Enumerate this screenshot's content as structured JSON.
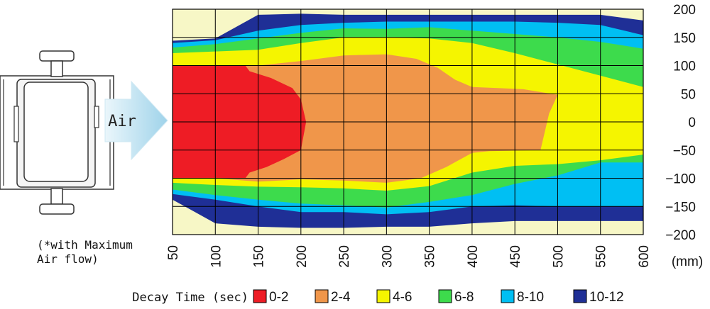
{
  "device": {
    "air_label": "Air",
    "note_line1": "(*with Maximum",
    "note_line2": "Air flow)"
  },
  "chart_data": {
    "type": "heatmap",
    "title": "",
    "xlabel": "",
    "ylabel": "",
    "x_unit": "(mm)",
    "xlim": [
      50,
      600
    ],
    "ylim": [
      -200,
      200
    ],
    "x_ticks": [
      50,
      100,
      150,
      200,
      250,
      300,
      350,
      400,
      450,
      500,
      550,
      600
    ],
    "y_ticks": [
      200,
      150,
      100,
      50,
      0,
      -50,
      -100,
      -150,
      -200
    ],
    "y_tick_labels": [
      "200",
      "150",
      "100",
      "50",
      "0",
      "−50",
      "−100",
      "−150",
      "−200"
    ],
    "grid": true,
    "background_color": "#f7f7c6",
    "legend_title": "Decay Time (sec)",
    "legend_position": "bottom",
    "bands": [
      {
        "label": "10-12",
        "color": "#1f2f96",
        "points": [
          [
            50,
            144
          ],
          [
            100,
            148
          ],
          [
            150,
            190
          ],
          [
            200,
            192
          ],
          [
            250,
            190
          ],
          [
            300,
            190
          ],
          [
            350,
            190
          ],
          [
            400,
            190
          ],
          [
            450,
            190
          ],
          [
            500,
            190
          ],
          [
            550,
            190
          ],
          [
            600,
            180
          ],
          [
            600,
            -176
          ],
          [
            550,
            -176
          ],
          [
            500,
            -176
          ],
          [
            450,
            -176
          ],
          [
            400,
            -180
          ],
          [
            350,
            -186
          ],
          [
            300,
            -186
          ],
          [
            250,
            -188
          ],
          [
            200,
            -188
          ],
          [
            150,
            -186
          ],
          [
            100,
            -180
          ],
          [
            50,
            -138
          ]
        ]
      },
      {
        "label": "8-10",
        "color": "#00bff3",
        "points": [
          [
            50,
            140
          ],
          [
            100,
            145
          ],
          [
            150,
            162
          ],
          [
            200,
            172
          ],
          [
            250,
            176
          ],
          [
            300,
            178
          ],
          [
            350,
            178
          ],
          [
            400,
            178
          ],
          [
            450,
            178
          ],
          [
            500,
            176
          ],
          [
            550,
            172
          ],
          [
            600,
            154
          ],
          [
            600,
            -150
          ],
          [
            550,
            -150
          ],
          [
            500,
            -150
          ],
          [
            450,
            -148
          ],
          [
            400,
            -150
          ],
          [
            350,
            -160
          ],
          [
            300,
            -164
          ],
          [
            250,
            -160
          ],
          [
            200,
            -160
          ],
          [
            150,
            -150
          ],
          [
            100,
            -138
          ],
          [
            50,
            -128
          ]
        ]
      },
      {
        "label": "6-8",
        "color": "#3ddb4c",
        "points": [
          [
            50,
            132
          ],
          [
            100,
            138
          ],
          [
            150,
            148
          ],
          [
            200,
            158
          ],
          [
            250,
            166
          ],
          [
            300,
            165
          ],
          [
            350,
            168
          ],
          [
            400,
            162
          ],
          [
            450,
            156
          ],
          [
            500,
            150
          ],
          [
            550,
            142
          ],
          [
            600,
            130
          ],
          [
            600,
            -72
          ],
          [
            550,
            -72
          ],
          [
            500,
            -95
          ],
          [
            450,
            -110
          ],
          [
            400,
            -130
          ],
          [
            350,
            -142
          ],
          [
            300,
            -152
          ],
          [
            250,
            -148
          ],
          [
            200,
            -145
          ],
          [
            150,
            -138
          ],
          [
            100,
            -130
          ],
          [
            50,
            -120
          ]
        ]
      },
      {
        "label": "4-6",
        "color": "#f5f500",
        "points": [
          [
            50,
            122
          ],
          [
            100,
            125
          ],
          [
            150,
            128
          ],
          [
            200,
            140
          ],
          [
            250,
            150
          ],
          [
            300,
            150
          ],
          [
            350,
            148
          ],
          [
            400,
            140
          ],
          [
            450,
            122
          ],
          [
            500,
            102
          ],
          [
            550,
            82
          ],
          [
            600,
            62
          ],
          [
            600,
            -58
          ],
          [
            550,
            -68
          ],
          [
            500,
            -75
          ],
          [
            450,
            -78
          ],
          [
            400,
            -90
          ],
          [
            350,
            -114
          ],
          [
            300,
            -122
          ],
          [
            250,
            -118
          ],
          [
            200,
            -116
          ],
          [
            150,
            -115
          ],
          [
            100,
            -112
          ],
          [
            50,
            -108
          ]
        ]
      },
      {
        "label": "2-4",
        "color": "#f0964a",
        "points": [
          [
            50,
            100
          ],
          [
            100,
            100
          ],
          [
            150,
            100
          ],
          [
            200,
            108
          ],
          [
            250,
            118
          ],
          [
            300,
            120
          ],
          [
            335,
            112
          ],
          [
            360,
            96
          ],
          [
            380,
            75
          ],
          [
            400,
            62
          ],
          [
            430,
            60
          ],
          [
            460,
            58
          ],
          [
            500,
            48
          ],
          [
            490,
            15
          ],
          [
            480,
            -50
          ],
          [
            420,
            -52
          ],
          [
            400,
            -55
          ],
          [
            370,
            -80
          ],
          [
            340,
            -100
          ],
          [
            300,
            -108
          ],
          [
            250,
            -104
          ],
          [
            200,
            -102
          ],
          [
            150,
            -106
          ],
          [
            100,
            -100
          ],
          [
            50,
            -100
          ]
        ]
      },
      {
        "label": "0-2",
        "color": "#ee1c25",
        "points": [
          [
            50,
            100
          ],
          [
            100,
            100
          ],
          [
            135,
            100
          ],
          [
            140,
            90
          ],
          [
            165,
            78
          ],
          [
            190,
            60
          ],
          [
            200,
            40
          ],
          [
            206,
            0
          ],
          [
            200,
            -50
          ],
          [
            180,
            -66
          ],
          [
            160,
            -80
          ],
          [
            140,
            -90
          ],
          [
            135,
            -100
          ],
          [
            100,
            -100
          ],
          [
            50,
            -100
          ]
        ]
      }
    ],
    "legend": [
      {
        "label": "0-2",
        "color": "#ee1c25"
      },
      {
        "label": "2-4",
        "color": "#f0964a"
      },
      {
        "label": "4-6",
        "color": "#f5f500"
      },
      {
        "label": "6-8",
        "color": "#3ddb4c"
      },
      {
        "label": "8-10",
        "color": "#00bff3"
      },
      {
        "label": "10-12",
        "color": "#1f2f96"
      }
    ]
  }
}
